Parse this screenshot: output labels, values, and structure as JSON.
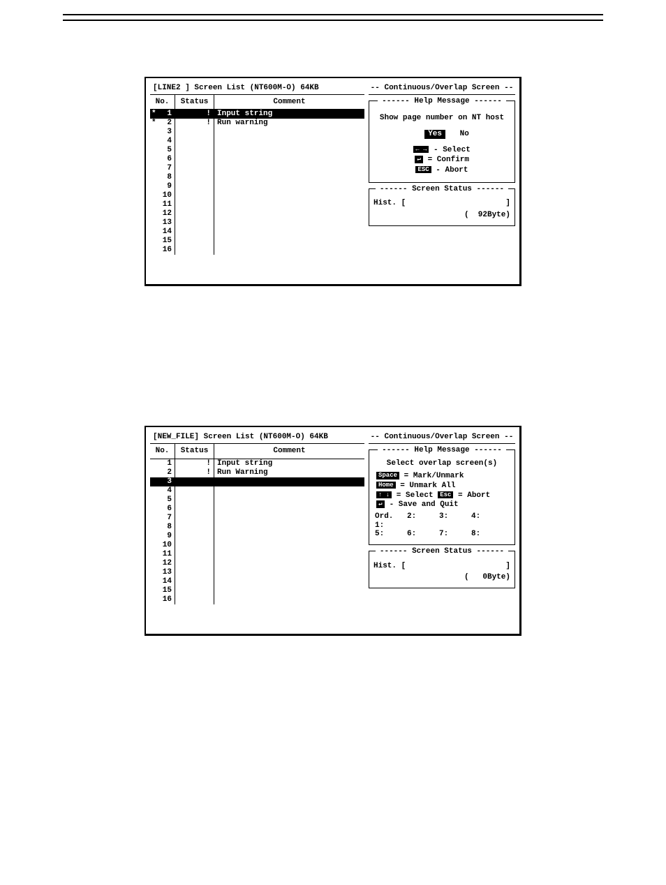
{
  "screenshot1": {
    "title_left": "[LINE2   ]  Screen List (NT600M-O)  64KB",
    "title_right": "-- Continuous/Overlap Screen --",
    "columns": {
      "no": "No.",
      "status": "Status",
      "comment": "Comment"
    },
    "rows": [
      {
        "no": "1",
        "mark": "*",
        "status": "!",
        "comment": "Input string",
        "selected": true
      },
      {
        "no": "2",
        "mark": "*",
        "status": "!",
        "comment": "Run warning",
        "selected": false
      },
      {
        "no": "3",
        "mark": "",
        "status": "",
        "comment": "",
        "selected": false
      },
      {
        "no": "4",
        "mark": "",
        "status": "",
        "comment": "",
        "selected": false
      },
      {
        "no": "5",
        "mark": "",
        "status": "",
        "comment": "",
        "selected": false
      },
      {
        "no": "6",
        "mark": "",
        "status": "",
        "comment": "",
        "selected": false
      },
      {
        "no": "7",
        "mark": "",
        "status": "",
        "comment": "",
        "selected": false
      },
      {
        "no": "8",
        "mark": "",
        "status": "",
        "comment": "",
        "selected": false
      },
      {
        "no": "9",
        "mark": "",
        "status": "",
        "comment": "",
        "selected": false
      },
      {
        "no": "10",
        "mark": "",
        "status": "",
        "comment": "",
        "selected": false
      },
      {
        "no": "11",
        "mark": "",
        "status": "",
        "comment": "",
        "selected": false
      },
      {
        "no": "12",
        "mark": "",
        "status": "",
        "comment": "",
        "selected": false
      },
      {
        "no": "13",
        "mark": "",
        "status": "",
        "comment": "",
        "selected": false
      },
      {
        "no": "14",
        "mark": "",
        "status": "",
        "comment": "",
        "selected": false
      },
      {
        "no": "15",
        "mark": "",
        "status": "",
        "comment": "",
        "selected": false
      },
      {
        "no": "16",
        "mark": "",
        "status": "",
        "comment": "",
        "selected": false
      }
    ],
    "help": {
      "title": "------   Help Message   ------",
      "prompt": "Show page number on NT host",
      "yes": "Yes",
      "no": "No",
      "k1": {
        "badge": "← →",
        "text": " - Select"
      },
      "k2": {
        "badge": " ↵ ",
        "text": " = Confirm"
      },
      "k3": {
        "badge": "ESC",
        "text": " - Abort"
      }
    },
    "status": {
      "title": "------   Screen Status   ------",
      "hist_label": "Hist. [",
      "hist_close": "]",
      "bytes_open": "(",
      "bytes": "92Byte",
      "bytes_close": ")"
    }
  },
  "screenshot2": {
    "title_left": "[NEW_FILE]  Screen List (NT600M-O)  64KB",
    "title_right": "-- Continuous/Overlap Screen --",
    "columns": {
      "no": "No.",
      "status": "Status",
      "comment": "Comment"
    },
    "rows": [
      {
        "no": "1",
        "mark": "",
        "status": "!",
        "comment": "Input string",
        "selected": false
      },
      {
        "no": "2",
        "mark": "",
        "status": "!",
        "comment": "Run Warning",
        "selected": false
      },
      {
        "no": "3",
        "mark": "",
        "status": "",
        "comment": "",
        "selected": true
      },
      {
        "no": "4",
        "mark": "",
        "status": "",
        "comment": "",
        "selected": false
      },
      {
        "no": "5",
        "mark": "",
        "status": "",
        "comment": "",
        "selected": false
      },
      {
        "no": "6",
        "mark": "",
        "status": "",
        "comment": "",
        "selected": false
      },
      {
        "no": "7",
        "mark": "",
        "status": "",
        "comment": "",
        "selected": false
      },
      {
        "no": "8",
        "mark": "",
        "status": "",
        "comment": "",
        "selected": false
      },
      {
        "no": "9",
        "mark": "",
        "status": "",
        "comment": "",
        "selected": false
      },
      {
        "no": "10",
        "mark": "",
        "status": "",
        "comment": "",
        "selected": false
      },
      {
        "no": "11",
        "mark": "",
        "status": "",
        "comment": "",
        "selected": false
      },
      {
        "no": "12",
        "mark": "",
        "status": "",
        "comment": "",
        "selected": false
      },
      {
        "no": "13",
        "mark": "",
        "status": "",
        "comment": "",
        "selected": false
      },
      {
        "no": "14",
        "mark": "",
        "status": "",
        "comment": "",
        "selected": false
      },
      {
        "no": "15",
        "mark": "",
        "status": "",
        "comment": "",
        "selected": false
      },
      {
        "no": "16",
        "mark": "",
        "status": "",
        "comment": "",
        "selected": false
      }
    ],
    "help": {
      "title": "------   Help Message   ------",
      "prompt": "Select overlap screen(s)",
      "k1": {
        "badge": "Space",
        "text": " = Mark/Unmark"
      },
      "k2": {
        "badge": "Home",
        "text": " = Unmark All"
      },
      "k3a": {
        "badge": "↑ ↓",
        "text": " = Select "
      },
      "k3b": {
        "badge": "Esc",
        "text": " = Abort"
      },
      "k4": {
        "badge": " ↵ ",
        "text": " - Save and Quit"
      },
      "ord_labels": [
        "Ord. 1:",
        "2:",
        "3:",
        "4:",
        "5:",
        "6:",
        "7:",
        "8:"
      ]
    },
    "status": {
      "title": "------   Screen Status   ------",
      "hist_label": "Hist. [",
      "hist_close": "]",
      "bytes_open": "(",
      "bytes": "0Byte",
      "bytes_close": ")"
    }
  }
}
